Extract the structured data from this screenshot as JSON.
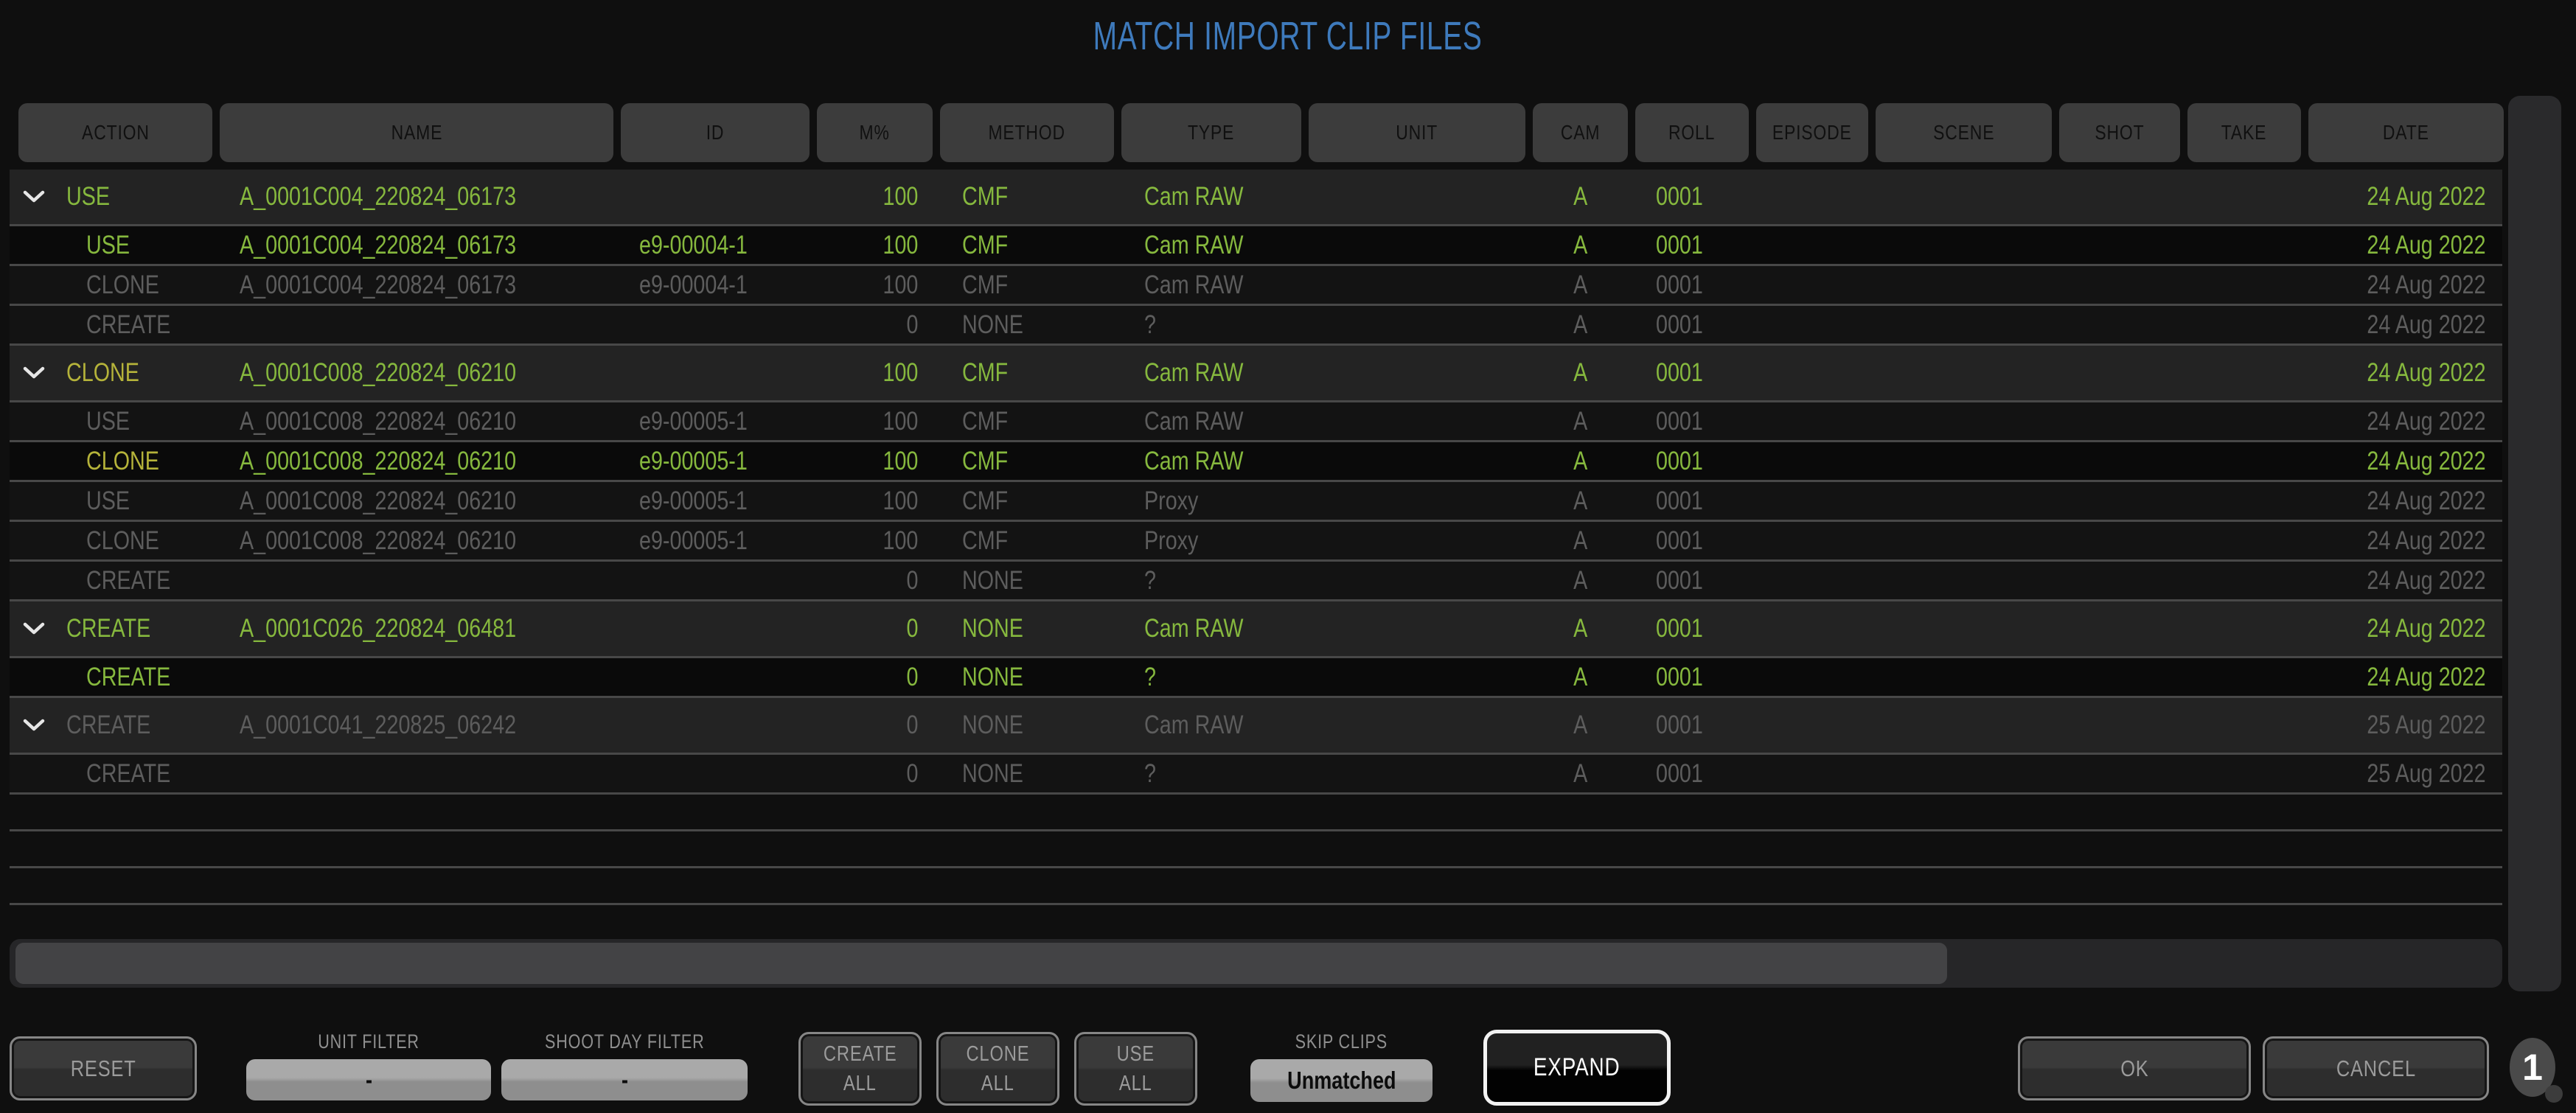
{
  "title": "MATCH IMPORT CLIP FILES",
  "colors": {
    "accent_blue": "#3e7abc",
    "match_green": "#86b83e",
    "clone_yellow": "#b5b33a",
    "dim_gray": "#5d5d5d",
    "header_bg": "#3c3c3c"
  },
  "table": {
    "columns": [
      {
        "id": "action",
        "label": "ACTION"
      },
      {
        "id": "name",
        "label": "NAME"
      },
      {
        "id": "id",
        "label": "ID"
      },
      {
        "id": "m",
        "label": "M%"
      },
      {
        "id": "method",
        "label": "METHOD"
      },
      {
        "id": "type",
        "label": "TYPE"
      },
      {
        "id": "unit",
        "label": "UNIT"
      },
      {
        "id": "cam",
        "label": "CAM"
      },
      {
        "id": "roll",
        "label": "ROLL"
      },
      {
        "id": "episode",
        "label": "EPISODE"
      },
      {
        "id": "scene",
        "label": "SCENE"
      },
      {
        "id": "shot",
        "label": "SHOT"
      },
      {
        "id": "take",
        "label": "TAKE"
      },
      {
        "id": "date",
        "label": "DATE"
      }
    ],
    "groups": [
      {
        "parent": {
          "action": "USE",
          "name": "A_0001C004_220824_06173",
          "id": "",
          "m": "100",
          "method": "CMF",
          "type": "Cam RAW",
          "unit": "",
          "cam": "A",
          "roll": "0001",
          "episode": "",
          "scene": "",
          "shot": "",
          "take": "",
          "date": "24 Aug 2022",
          "active": true,
          "yellow": false
        },
        "children": [
          {
            "action": "USE",
            "name": "A_0001C004_220824_06173",
            "id": "e9-00004-1",
            "m": "100",
            "method": "CMF",
            "type": "Cam RAW",
            "unit": "",
            "cam": "A",
            "roll": "0001",
            "episode": "",
            "scene": "",
            "shot": "",
            "take": "",
            "date": "24 Aug 2022",
            "active": true,
            "selected": true,
            "yellow": false
          },
          {
            "action": "CLONE",
            "name": "A_0001C004_220824_06173",
            "id": "e9-00004-1",
            "m": "100",
            "method": "CMF",
            "type": "Cam RAW",
            "unit": "",
            "cam": "A",
            "roll": "0001",
            "episode": "",
            "scene": "",
            "shot": "",
            "take": "",
            "date": "24 Aug 2022",
            "active": false,
            "selected": false,
            "yellow": false
          },
          {
            "action": "CREATE",
            "name": "",
            "id": "",
            "m": "0",
            "method": "NONE",
            "type": "?",
            "unit": "",
            "cam": "A",
            "roll": "0001",
            "episode": "",
            "scene": "",
            "shot": "",
            "take": "",
            "date": "24 Aug 2022",
            "active": false,
            "selected": false,
            "yellow": false
          }
        ]
      },
      {
        "parent": {
          "action": "CLONE",
          "name": "A_0001C008_220824_06210",
          "id": "",
          "m": "100",
          "method": "CMF",
          "type": "Cam RAW",
          "unit": "",
          "cam": "A",
          "roll": "0001",
          "episode": "",
          "scene": "",
          "shot": "",
          "take": "",
          "date": "24 Aug 2022",
          "active": true,
          "yellow": true
        },
        "children": [
          {
            "action": "USE",
            "name": "A_0001C008_220824_06210",
            "id": "e9-00005-1",
            "m": "100",
            "method": "CMF",
            "type": "Cam RAW",
            "unit": "",
            "cam": "A",
            "roll": "0001",
            "episode": "",
            "scene": "",
            "shot": "",
            "take": "",
            "date": "24 Aug 2022",
            "active": false,
            "selected": false,
            "yellow": false
          },
          {
            "action": "CLONE",
            "name": "A_0001C008_220824_06210",
            "id": "e9-00005-1",
            "m": "100",
            "method": "CMF",
            "type": "Cam RAW",
            "unit": "",
            "cam": "A",
            "roll": "0001",
            "episode": "",
            "scene": "",
            "shot": "",
            "take": "",
            "date": "24 Aug 2022",
            "active": true,
            "selected": true,
            "yellow": true
          },
          {
            "action": "USE",
            "name": "A_0001C008_220824_06210",
            "id": "e9-00005-1",
            "m": "100",
            "method": "CMF",
            "type": "Proxy",
            "unit": "",
            "cam": "A",
            "roll": "0001",
            "episode": "",
            "scene": "",
            "shot": "",
            "take": "",
            "date": "24 Aug 2022",
            "active": false,
            "selected": false,
            "yellow": false
          },
          {
            "action": "CLONE",
            "name": "A_0001C008_220824_06210",
            "id": "e9-00005-1",
            "m": "100",
            "method": "CMF",
            "type": "Proxy",
            "unit": "",
            "cam": "A",
            "roll": "0001",
            "episode": "",
            "scene": "",
            "shot": "",
            "take": "",
            "date": "24 Aug 2022",
            "active": false,
            "selected": false,
            "yellow": false
          },
          {
            "action": "CREATE",
            "name": "",
            "id": "",
            "m": "0",
            "method": "NONE",
            "type": "?",
            "unit": "",
            "cam": "A",
            "roll": "0001",
            "episode": "",
            "scene": "",
            "shot": "",
            "take": "",
            "date": "24 Aug 2022",
            "active": false,
            "selected": false,
            "yellow": false
          }
        ]
      },
      {
        "parent": {
          "action": "CREATE",
          "name": "A_0001C026_220824_06481",
          "id": "",
          "m": "0",
          "method": "NONE",
          "type": "Cam RAW",
          "unit": "",
          "cam": "A",
          "roll": "0001",
          "episode": "",
          "scene": "",
          "shot": "",
          "take": "",
          "date": "24 Aug 2022",
          "active": true,
          "yellow": false
        },
        "children": [
          {
            "action": "CREATE",
            "name": "",
            "id": "",
            "m": "0",
            "method": "NONE",
            "type": "?",
            "unit": "",
            "cam": "A",
            "roll": "0001",
            "episode": "",
            "scene": "",
            "shot": "",
            "take": "",
            "date": "24 Aug 2022",
            "active": true,
            "selected": true,
            "yellow": false
          }
        ]
      },
      {
        "parent": {
          "action": "CREATE",
          "name": "A_0001C041_220825_06242",
          "id": "",
          "m": "0",
          "method": "NONE",
          "type": "Cam RAW",
          "unit": "",
          "cam": "A",
          "roll": "0001",
          "episode": "",
          "scene": "",
          "shot": "",
          "take": "",
          "date": "25 Aug 2022",
          "active": false,
          "yellow": false
        },
        "children": [
          {
            "action": "CREATE",
            "name": "",
            "id": "",
            "m": "0",
            "method": "NONE",
            "type": "?",
            "unit": "",
            "cam": "A",
            "roll": "0001",
            "episode": "",
            "scene": "",
            "shot": "",
            "take": "",
            "date": "25 Aug 2022",
            "active": false,
            "selected": false,
            "yellow": false
          }
        ]
      }
    ],
    "empty_rows": 3
  },
  "footer": {
    "reset_label": "RESET",
    "unit_filter": {
      "label": "UNIT FILTER",
      "value": "-"
    },
    "shoot_day_filter": {
      "label": "SHOOT DAY FILTER",
      "value": "-"
    },
    "create_all": {
      "line1": "CREATE",
      "line2": "ALL"
    },
    "clone_all": {
      "line1": "CLONE",
      "line2": "ALL"
    },
    "use_all": {
      "line1": "USE",
      "line2": "ALL"
    },
    "skip_clips": {
      "label": "SKIP CLIPS",
      "value": "Unmatched"
    },
    "expand_label": "EXPAND",
    "ok_label": "OK",
    "cancel_label": "CANCEL",
    "badge_count": "1"
  }
}
